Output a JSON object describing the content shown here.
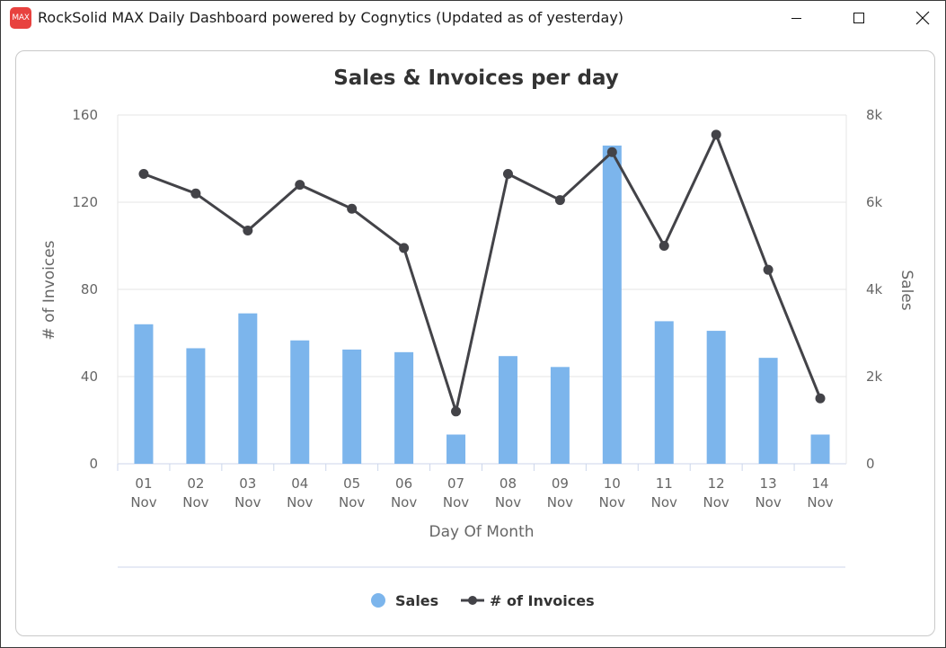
{
  "window": {
    "icon_text": "MAX",
    "title": "RockSolid MAX Daily Dashboard powered by Cognytics (Updated as of yesterday)"
  },
  "colors": {
    "bar": "#7cb5ec",
    "line": "#434348",
    "grid": "#e6e6e6"
  },
  "chart_data": {
    "type": "bar",
    "title": "Sales & Invoices per day",
    "xlabel": "Day Of Month",
    "ylabel_left": "# of Invoices",
    "ylabel_right": "Sales",
    "categories": [
      "01 Nov",
      "02 Nov",
      "03 Nov",
      "04 Nov",
      "05 Nov",
      "06 Nov",
      "07 Nov",
      "08 Nov",
      "09 Nov",
      "10 Nov",
      "11 Nov",
      "12 Nov",
      "13 Nov",
      "14 Nov"
    ],
    "left_axis": {
      "ylim": [
        0,
        160
      ],
      "ticks": [
        "0",
        "40",
        "80",
        "120",
        "160"
      ]
    },
    "right_axis": {
      "ylim": [
        0,
        8000
      ],
      "ticks": [
        "0",
        "2k",
        "4k",
        "6k",
        "8k"
      ]
    },
    "series": [
      {
        "name": "Sales",
        "type": "bar",
        "axis": "right",
        "values": [
          3200,
          2650,
          3450,
          2830,
          2620,
          2560,
          670,
          2470,
          2220,
          7300,
          3270,
          3050,
          2430,
          670
        ]
      },
      {
        "name": "# of Invoices",
        "type": "line",
        "axis": "left",
        "values": [
          133,
          124,
          107,
          128,
          117,
          99,
          24,
          133,
          121,
          143,
          100,
          151,
          89,
          30
        ]
      }
    ],
    "legend": {
      "position": "bottom-center",
      "items": [
        "Sales",
        "# of Invoices"
      ]
    },
    "grid": true
  }
}
